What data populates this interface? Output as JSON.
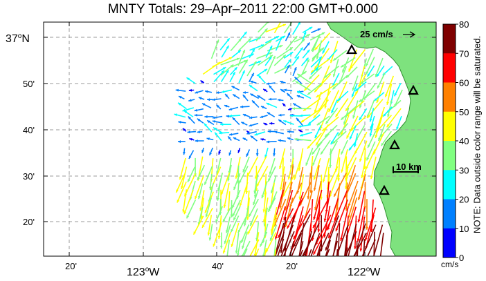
{
  "title": "MNTY Totals: 29–Apr–2011 22:00 GMT+0.000",
  "scale_arrow": {
    "label": "25 cm/s"
  },
  "scale_bar": {
    "label": "10 km"
  },
  "lat_labels": [
    {
      "label": "37",
      "suffix": "o",
      "hemi": "N",
      "major": true
    },
    {
      "label": "50'"
    },
    {
      "label": "40'"
    },
    {
      "label": "30'"
    },
    {
      "label": "20'"
    }
  ],
  "lon_labels": [
    {
      "label": "20'"
    },
    {
      "label": "123",
      "suffix": "o",
      "hemi": "W",
      "major": true
    },
    {
      "label": "40'"
    },
    {
      "label": "20'"
    },
    {
      "label": "122",
      "suffix": "o",
      "hemi": "W",
      "major": true
    }
  ],
  "colorbar": {
    "ticks": [
      "80",
      "70",
      "60",
      "50",
      "40",
      "30",
      "20",
      "10",
      "0"
    ],
    "colors": [
      "#7f0000",
      "#ff0000",
      "#ff8000",
      "#ffff00",
      "#80ff80",
      "#00ffff",
      "#0080ff",
      "#0000ff"
    ],
    "note": "NOTE: Data outside color range will be saturated.",
    "units": "cm/s"
  },
  "land_color": "#7ee27e",
  "stations": [
    "triangle-1",
    "triangle-2",
    "triangle-3",
    "triangle-4",
    "triangle-5"
  ]
}
